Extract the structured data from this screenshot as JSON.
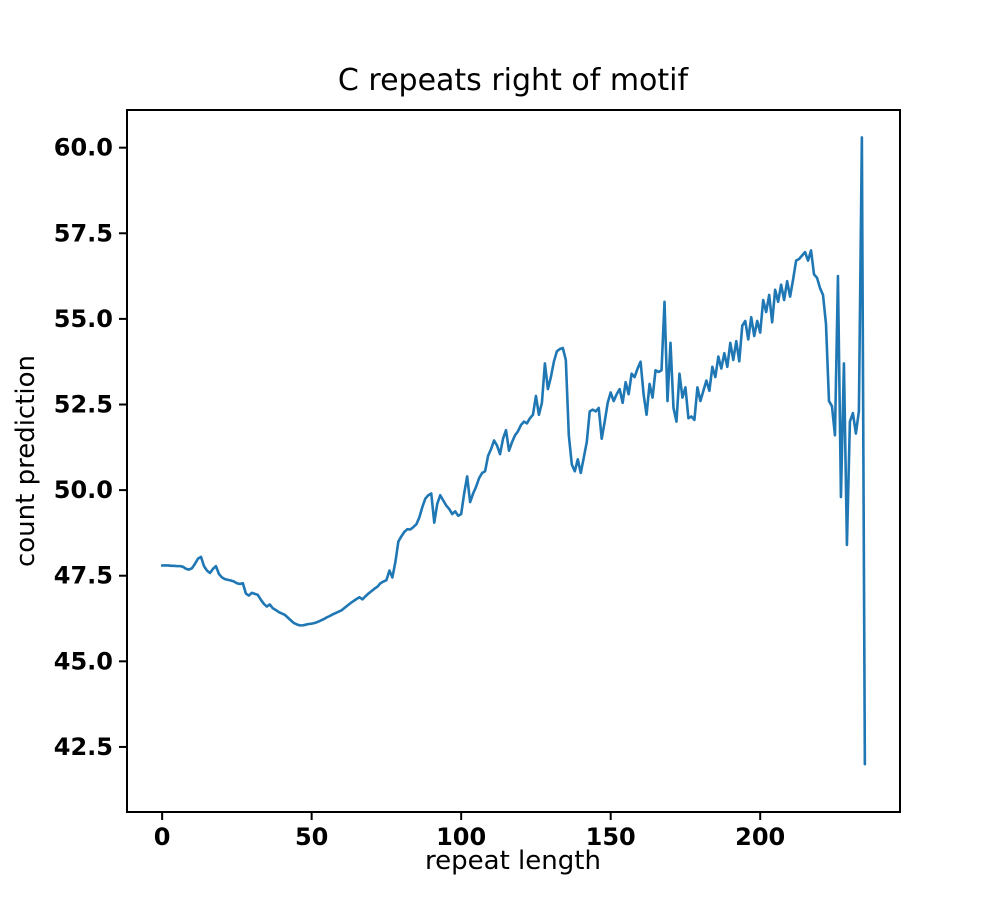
{
  "chart_data": {
    "type": "line",
    "title": "C repeats right of motif",
    "xlabel": "repeat length",
    "ylabel": "count prediction",
    "legend": "none",
    "grid": false,
    "line_color": "#1f77b4",
    "axis_color": "#000000",
    "background_color": "#ffffff",
    "xlim": [
      -11.75,
      246.75
    ],
    "ylim": [
      40.6,
      61.1
    ],
    "x_ticks": [
      0,
      50,
      100,
      150,
      200
    ],
    "x_tick_labels": [
      "0",
      "50",
      "100",
      "150",
      "200"
    ],
    "y_ticks": [
      42.5,
      45.0,
      47.5,
      50.0,
      52.5,
      55.0,
      57.5,
      60.0
    ],
    "y_tick_labels": [
      "42.5",
      "45.0",
      "47.5",
      "50.0",
      "52.5",
      "55.0",
      "57.5",
      "60.0"
    ],
    "x_start": 0,
    "x_step": 1,
    "values": [
      47.8,
      47.8,
      47.8,
      47.79,
      47.79,
      47.78,
      47.78,
      47.76,
      47.7,
      47.68,
      47.72,
      47.85,
      48.0,
      48.05,
      47.78,
      47.65,
      47.58,
      47.7,
      47.78,
      47.55,
      47.45,
      47.4,
      47.38,
      47.36,
      47.33,
      47.28,
      47.26,
      47.28,
      46.98,
      46.92,
      47.0,
      46.97,
      46.94,
      46.8,
      46.68,
      46.6,
      46.66,
      46.55,
      46.5,
      46.44,
      46.4,
      46.36,
      46.28,
      46.2,
      46.12,
      46.08,
      46.05,
      46.05,
      46.07,
      46.09,
      46.1,
      46.12,
      46.15,
      46.19,
      46.23,
      46.28,
      46.32,
      46.37,
      46.41,
      46.45,
      46.49,
      46.56,
      46.63,
      46.7,
      46.76,
      46.82,
      46.87,
      46.81,
      46.9,
      46.98,
      47.05,
      47.12,
      47.18,
      47.28,
      47.33,
      47.37,
      47.65,
      47.45,
      47.9,
      48.5,
      48.65,
      48.78,
      48.86,
      48.85,
      48.92,
      49.0,
      49.2,
      49.5,
      49.75,
      49.85,
      49.9,
      49.05,
      49.6,
      49.85,
      49.7,
      49.55,
      49.45,
      49.3,
      49.38,
      49.25,
      49.3,
      49.9,
      50.4,
      49.65,
      49.9,
      50.1,
      50.35,
      50.5,
      50.55,
      51.0,
      51.2,
      51.45,
      51.3,
      51.05,
      51.5,
      51.75,
      51.15,
      51.4,
      51.6,
      51.72,
      51.9,
      52.0,
      51.95,
      52.1,
      52.2,
      52.75,
      52.2,
      52.55,
      53.7,
      52.95,
      53.3,
      53.75,
      54.05,
      54.12,
      54.15,
      53.8,
      51.6,
      50.75,
      50.55,
      50.9,
      50.5,
      50.95,
      51.4,
      52.3,
      52.35,
      52.3,
      52.4,
      51.5,
      52.0,
      52.55,
      52.85,
      52.6,
      52.8,
      52.95,
      52.55,
      53.15,
      52.8,
      53.4,
      53.3,
      53.55,
      53.75,
      52.8,
      52.2,
      53.1,
      52.7,
      53.5,
      53.45,
      53.5,
      55.5,
      52.6,
      54.3,
      52.4,
      52.0,
      53.4,
      52.7,
      53.0,
      52.1,
      52.15,
      52.05,
      53.0,
      52.6,
      52.9,
      53.2,
      52.9,
      53.6,
      53.3,
      53.9,
      53.55,
      54.0,
      53.6,
      54.3,
      53.8,
      54.35,
      53.76,
      54.8,
      54.94,
      54.4,
      55.05,
      54.5,
      54.94,
      54.6,
      55.55,
      55.2,
      55.7,
      54.9,
      55.85,
      55.5,
      56.0,
      55.55,
      56.1,
      55.65,
      56.15,
      56.7,
      56.75,
      56.85,
      56.95,
      56.7,
      57.0,
      56.3,
      56.2,
      55.9,
      55.7,
      54.85,
      52.6,
      52.45,
      51.6,
      56.25,
      49.8,
      53.7,
      48.4,
      52.0,
      52.25,
      51.65,
      52.3,
      60.3,
      42.0
    ]
  }
}
